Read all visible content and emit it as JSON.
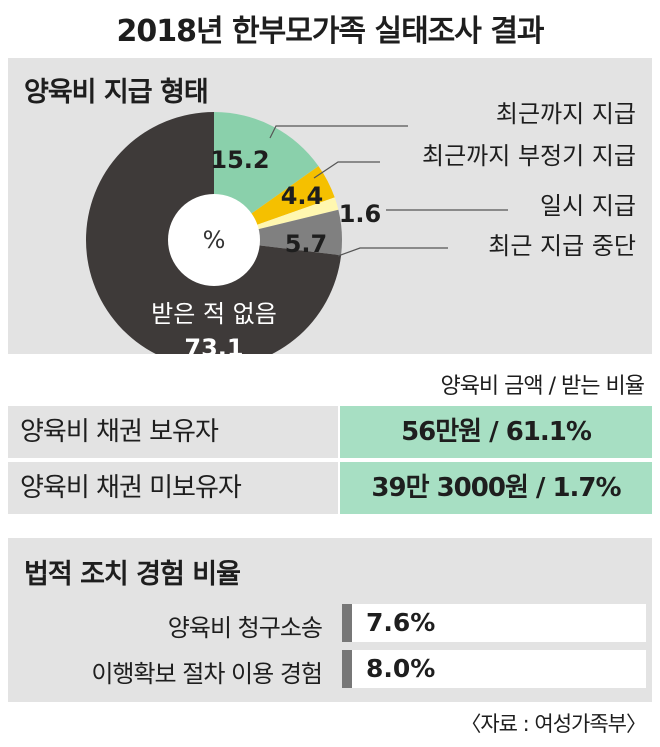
{
  "title": "2018년 한부모가족 실태조사 결과",
  "payment_section": {
    "title": "양육비 지급 형태",
    "center_label": "%"
  },
  "chart_data": {
    "type": "pie",
    "title": "양육비 지급 형태",
    "unit": "%",
    "slices": [
      {
        "label": "최근까지 지급",
        "value": 15.2,
        "value_label": "15.2",
        "color": "#8ad0ab"
      },
      {
        "label": "최근까지 부정기 지급",
        "value": 4.4,
        "value_label": "4.4",
        "color": "#f5c000"
      },
      {
        "label": "일시 지급",
        "value": 1.6,
        "value_label": "1.6",
        "color": "#fff7b0"
      },
      {
        "label": "최근 지급 중단",
        "value": 5.7,
        "value_label": "5.7",
        "color": "#808080"
      },
      {
        "label": "받은 적 없음",
        "value": 73.1,
        "value_label": "73.1",
        "color": "#3e3a39"
      }
    ]
  },
  "amount_section": {
    "header": "양육비 금액 / 받는 비율",
    "rows": [
      {
        "label": "양육비 채권 보유자",
        "value": "56만원 / 61.1%"
      },
      {
        "label": "양육비 채권 미보유자",
        "value": "39만 3000원 / 1.7%"
      }
    ]
  },
  "legal_section": {
    "title": "법적 조치 경험 비율",
    "rows": [
      {
        "label": "양육비 청구소송",
        "value": "7.6%",
        "rate": 7.6
      },
      {
        "label": "이행확보 절차 이용 경험",
        "value": "8.0%",
        "rate": 8.0
      }
    ]
  },
  "source": "〈자료 : 여성가족부〉"
}
